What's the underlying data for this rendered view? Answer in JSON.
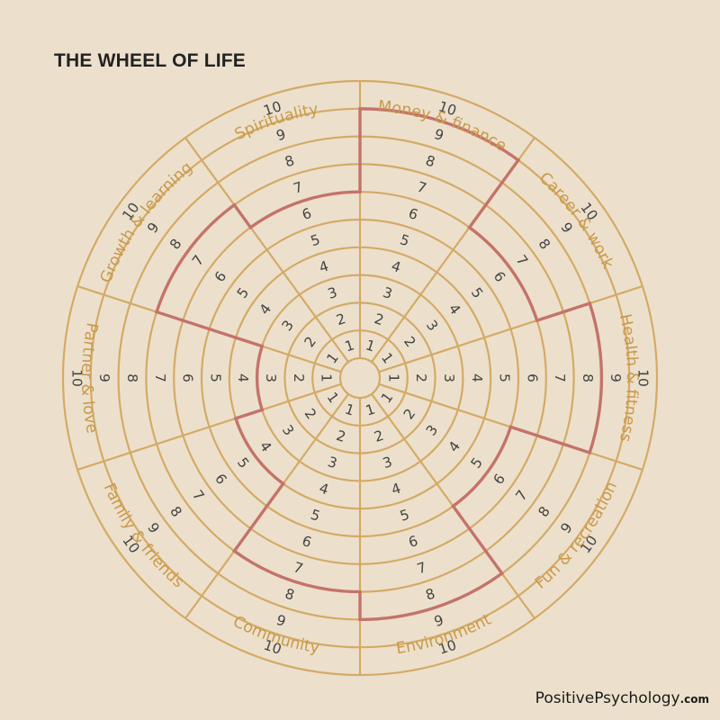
{
  "header": {
    "title": "THE WHEEL OF LIFE"
  },
  "brand": {
    "name": "PositivePsychology",
    "suffix": ".com"
  },
  "wheel": {
    "scale": [
      "1",
      "2",
      "3",
      "4",
      "5",
      "6",
      "7",
      "8",
      "9",
      "10"
    ],
    "categories": [
      {
        "label": "Money & finance",
        "score": 9
      },
      {
        "label": "Career & work",
        "score": 6
      },
      {
        "label": "Health & fitness",
        "score": 8
      },
      {
        "label": "Fun & recreation",
        "score": 5
      },
      {
        "label": "Environment",
        "score": 8
      },
      {
        "label": "Community",
        "score": 7
      },
      {
        "label": "Family & friends",
        "score": 4
      },
      {
        "label": "Partner & love",
        "score": 3
      },
      {
        "label": "Growth & learning",
        "score": 7
      },
      {
        "label": "Spirituality",
        "score": 6
      }
    ],
    "colors": {
      "background": "#ece0cc",
      "grid": "#d4aa67",
      "score_outline": "#c4736a",
      "category_label": "#c99a4a",
      "number": "#444444"
    }
  }
}
